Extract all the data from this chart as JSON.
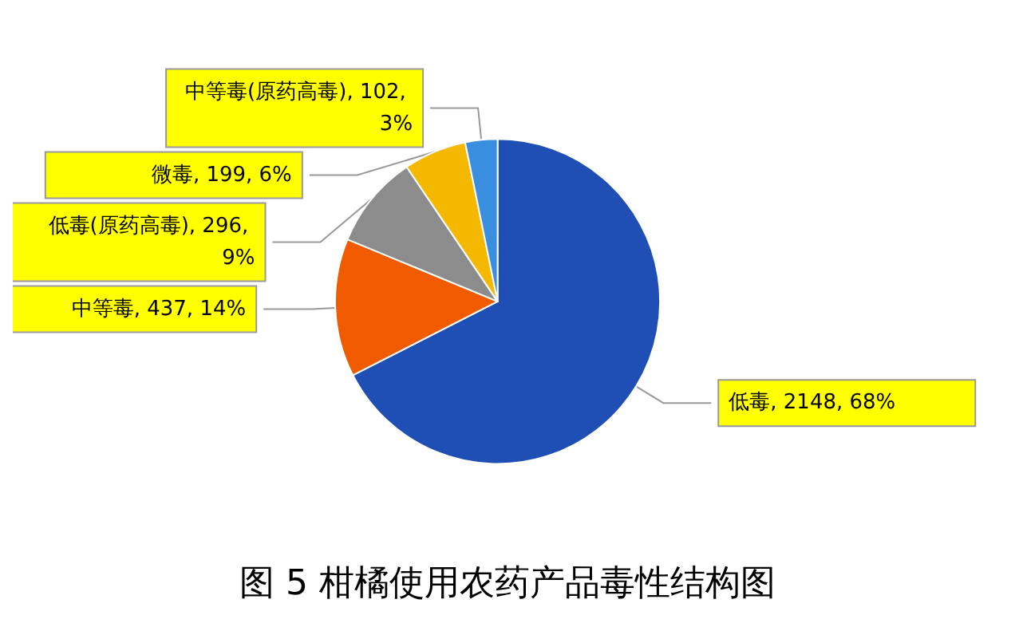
{
  "chart_data": {
    "type": "pie",
    "categories": [
      "低毒",
      "中等毒",
      "低毒(原药高毒)",
      "微毒",
      "中等毒(原药高毒)"
    ],
    "values": [
      2148,
      437,
      296,
      199,
      102
    ],
    "value_labels": [
      "2148, 68%",
      "437, 14%",
      "296, 9%",
      "199, 6%",
      "102, 3%"
    ],
    "colors": [
      "#1f4fb4",
      "#f05a00",
      "#8c8c8c",
      "#f5b800",
      "#3a8ee0"
    ],
    "annotations": [
      "图 5 柑橘使用农药产品毒性结构图"
    ],
    "legend": false
  }
}
